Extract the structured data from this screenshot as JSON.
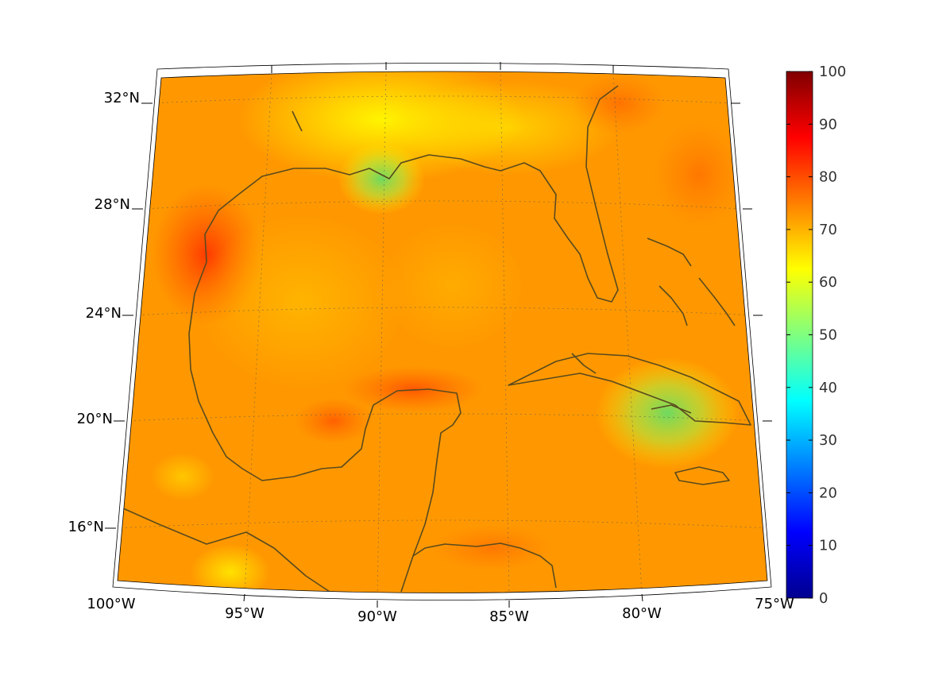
{
  "map": {
    "lon_labels": [
      "100°W",
      "95°W",
      "90°W",
      "85°W",
      "80°W",
      "75°W"
    ],
    "lat_labels": [
      "32°N",
      "28°N",
      "24°N",
      "20°N",
      "16°N"
    ]
  },
  "colorbar": {
    "ticks": [
      "100",
      "90",
      "80",
      "70",
      "60",
      "50",
      "40",
      "30",
      "20",
      "10",
      "0"
    ],
    "range": [
      0,
      100
    ],
    "colormap": "jet"
  },
  "colors": {
    "coastline": "#5a4a1e",
    "field_dominant": "#ff9a00",
    "frame": "#000000"
  }
}
